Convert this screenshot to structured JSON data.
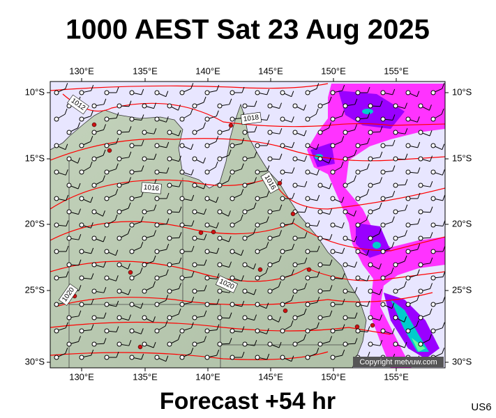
{
  "title": "1000 AEST Sat 23 Aug 2025",
  "footer": "Forecast +54 hr",
  "code": "US6",
  "copyright": "Copyright metvuw.com",
  "map": {
    "lon_labels": [
      "130°E",
      "135°E",
      "140°E",
      "145°E",
      "150°E",
      "155°E"
    ],
    "lat_labels": [
      "10°S",
      "15°S",
      "20°S",
      "25°S",
      "30°S"
    ],
    "isobar_labels": [
      "1012",
      "1018",
      "1016",
      "1016",
      "1020",
      "1020"
    ]
  }
}
